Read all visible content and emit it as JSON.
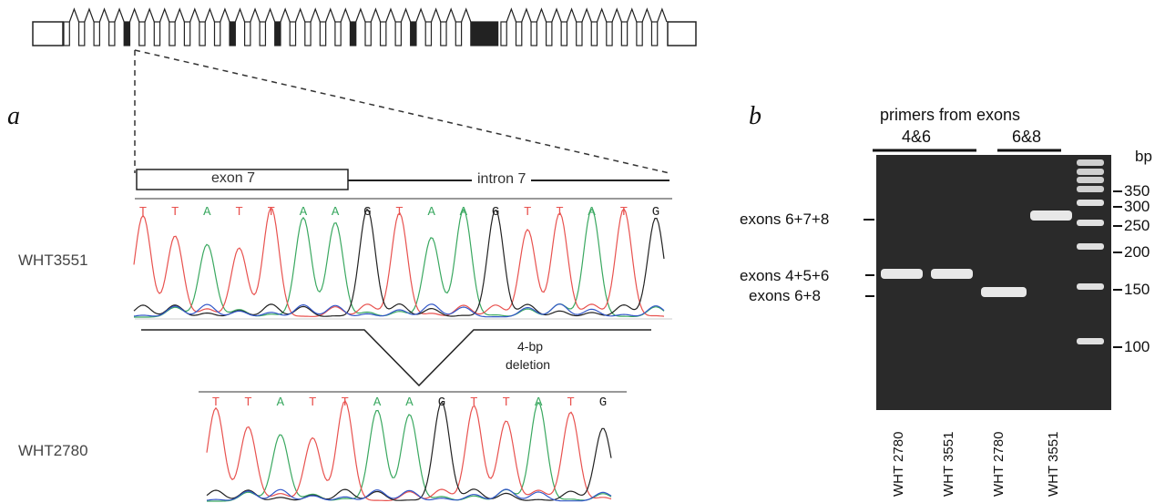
{
  "panel_a": {
    "letter": "a",
    "exon_label": "exon 7",
    "intron_label": "intron 7",
    "sample_top": "WHT3551",
    "sample_bottom": "WHT2780",
    "deletion_label_1": "4-bp",
    "deletion_label_2": "deletion",
    "sequence_top": [
      "T",
      "T",
      "A",
      "T",
      "T",
      "A",
      "A",
      "G",
      "T",
      "A",
      "A",
      "G",
      "T",
      "T",
      "A",
      "T",
      "G"
    ],
    "sequence_bottom": [
      "T",
      "T",
      "A",
      "T",
      "T",
      "A",
      "A",
      "G",
      "T",
      "T",
      "A",
      "T",
      "G"
    ]
  },
  "panel_b": {
    "letter": "b",
    "title": "primers from exons",
    "group_1": "4&6",
    "group_2": "6&8",
    "bp_unit": "bp",
    "band_labels": [
      "exons 6+7+8",
      "exons 4+5+6",
      "exons 6+8"
    ],
    "marker_labels": [
      "350",
      "300",
      "250",
      "200",
      "150",
      "100"
    ],
    "lanes": [
      "WHT 2780",
      "WHT 3551",
      "WHT 2780",
      "WHT 3551"
    ]
  },
  "colors": {
    "A": "#3aa860",
    "T": "#e8524f",
    "G": "#222222",
    "C": "#3357c8",
    "gel_bg": "#2a2a2a"
  }
}
